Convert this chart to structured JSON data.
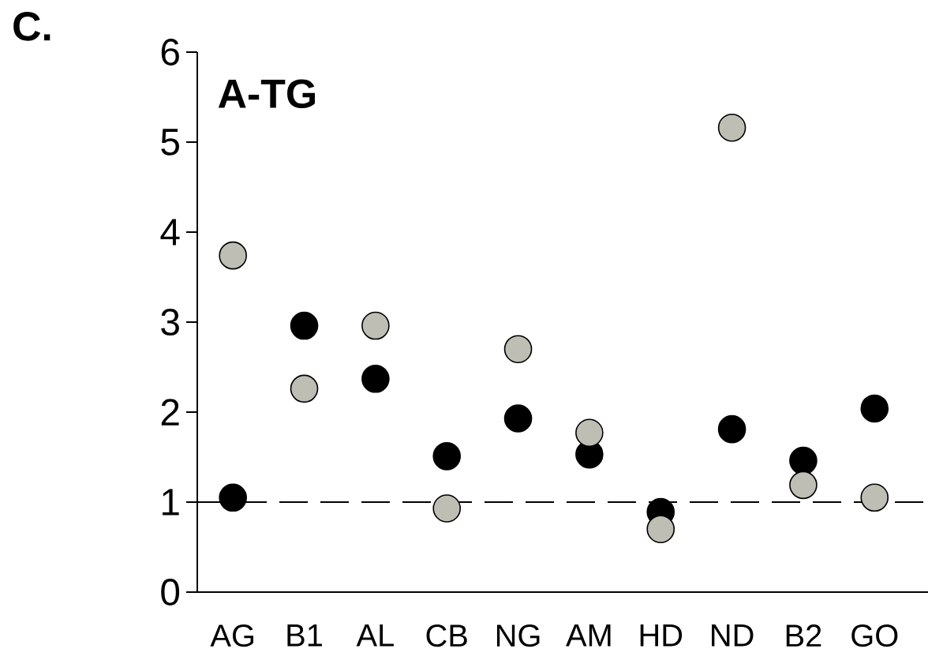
{
  "chart_data": {
    "type": "scatter",
    "title": "A-TG",
    "annotations": [
      "C."
    ],
    "categories": [
      "AG",
      "B1",
      "AL",
      "CB",
      "NG",
      "AM",
      "HD",
      "ND",
      "B2",
      "GO"
    ],
    "series": [
      {
        "color": "#000000",
        "values": [
          1.05,
          2.96,
          2.37,
          1.51,
          1.93,
          1.53,
          0.89,
          1.81,
          1.46,
          2.04
        ]
      },
      {
        "color": "#bebeb4",
        "values": [
          3.74,
          2.26,
          2.96,
          0.93,
          2.7,
          1.77,
          0.7,
          5.16,
          1.19,
          1.05
        ]
      }
    ],
    "ylim": [
      0,
      6
    ],
    "yticks": [
      0,
      1,
      2,
      3,
      4,
      5,
      6
    ],
    "marker": "circle",
    "ref_lines": [
      {
        "axis": "y",
        "value": 1,
        "line_style": "dashed",
        "color": "#000000"
      }
    ]
  }
}
